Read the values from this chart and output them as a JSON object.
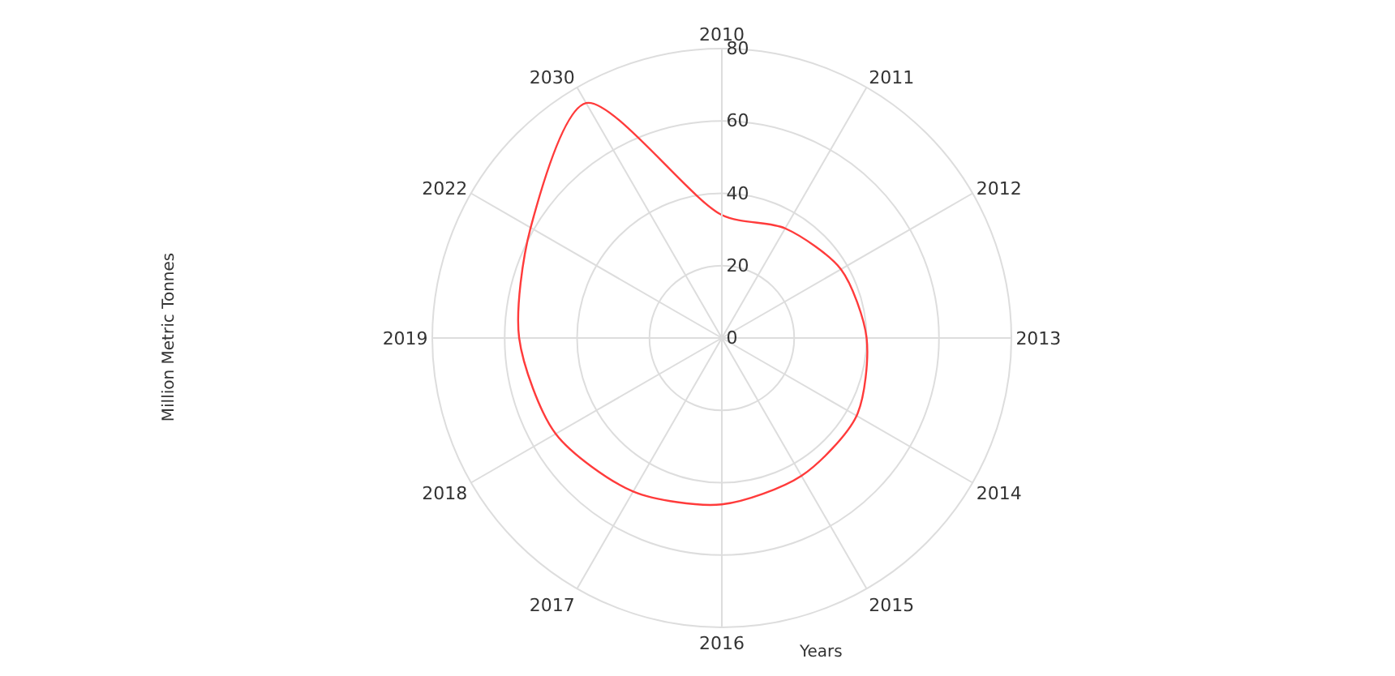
{
  "chart_data": {
    "type": "radar",
    "xlabel": "Years",
    "ylabel": "Million Metric Tonnes",
    "categories": [
      "2010",
      "2011",
      "2012",
      "2013",
      "2014",
      "2015",
      "2016",
      "2017",
      "2018",
      "2019",
      "2022",
      "2030"
    ],
    "series": [
      {
        "color": "#ff3b3b",
        "values": [
          34,
          35,
          38,
          40,
          43,
          44,
          46,
          49,
          53,
          56,
          61,
          75
        ]
      }
    ],
    "ylim": [
      0,
      80
    ],
    "yticks": [
      0,
      20,
      40,
      60,
      80
    ],
    "grid": true,
    "marker": "none",
    "line_style": "solid"
  }
}
